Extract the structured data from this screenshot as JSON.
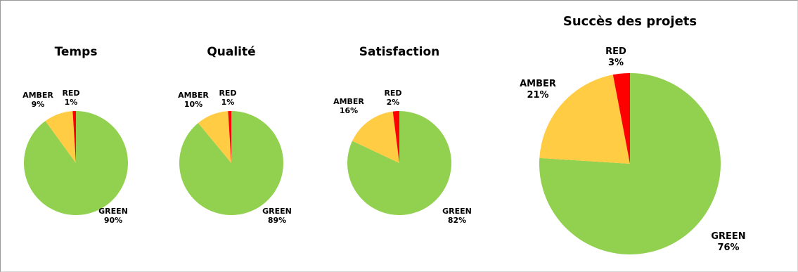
{
  "chart_data": [
    {
      "type": "pie",
      "title": "Temps",
      "categories": [
        "GREEN",
        "AMBER",
        "RED"
      ],
      "values": [
        90,
        9,
        1
      ],
      "value_labels": [
        "90%",
        "9%",
        "1%"
      ]
    },
    {
      "type": "pie",
      "title": "Qualité",
      "categories": [
        "GREEN",
        "AMBER",
        "RED"
      ],
      "values": [
        89,
        10,
        1
      ],
      "value_labels": [
        "89%",
        "10%",
        "1%"
      ]
    },
    {
      "type": "pie",
      "title": "Satisfaction",
      "categories": [
        "GREEN",
        "AMBER",
        "RED"
      ],
      "values": [
        82,
        16,
        2
      ],
      "value_labels": [
        "82%",
        "16%",
        "2%"
      ]
    },
    {
      "type": "pie",
      "title": "Succès des projets",
      "categories": [
        "GREEN",
        "AMBER",
        "RED"
      ],
      "values": [
        76,
        21,
        3
      ],
      "value_labels": [
        "76%",
        "21%",
        "3%"
      ]
    }
  ],
  "colors": {
    "GREEN": "#92d050",
    "AMBER": "#ffcc44",
    "RED": "#ff0000"
  }
}
